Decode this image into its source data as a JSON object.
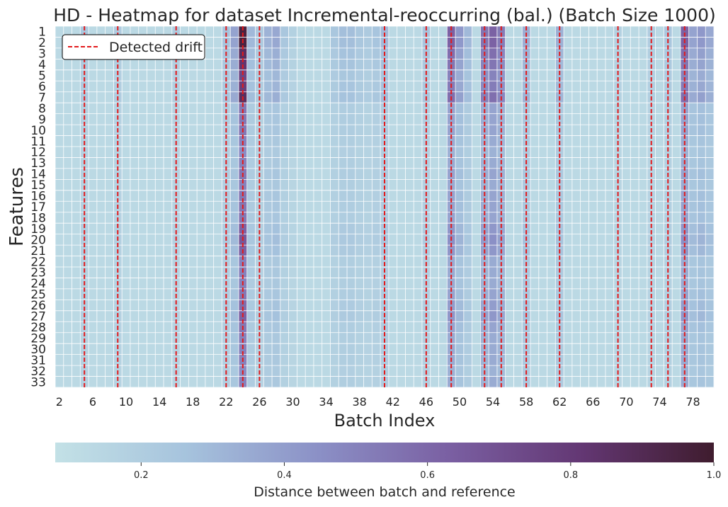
{
  "chart_data": {
    "type": "heatmap",
    "title": "HD - Heatmap for dataset Incremental-reoccurring (bal.) (Batch Size 1000)",
    "xlabel": "Batch Index",
    "ylabel": "Features",
    "x_start": 2,
    "x_end": 80,
    "x_tick_labels": [
      "2",
      "6",
      "10",
      "14",
      "18",
      "22",
      "26",
      "30",
      "34",
      "38",
      "42",
      "46",
      "50",
      "54",
      "58",
      "62",
      "66",
      "70",
      "74",
      "78"
    ],
    "y_labels": [
      "1",
      "2",
      "3",
      "4",
      "5",
      "6",
      "7",
      "8",
      "9",
      "10",
      "11",
      "12",
      "13",
      "14",
      "15",
      "16",
      "17",
      "18",
      "19",
      "20",
      "21",
      "22",
      "23",
      "24",
      "25",
      "26",
      "27",
      "28",
      "29",
      "30",
      "31",
      "32",
      "33"
    ],
    "legend": {
      "label": "Detected drift",
      "placement": "upper-left",
      "line_color": "#e31a1c"
    },
    "drift_batches": [
      5,
      9,
      16,
      22,
      24,
      26,
      41,
      46,
      49,
      53,
      55,
      58,
      62,
      69,
      73,
      75,
      77
    ],
    "colorbar": {
      "label": "Distance between batch and reference",
      "range": [
        0.08,
        1.0
      ],
      "ticks": [
        "0.2",
        "0.4",
        "0.6",
        "0.8",
        "1.0"
      ],
      "tick_values": [
        0.2,
        0.4,
        0.6,
        0.8,
        1.0
      ],
      "colormap": [
        "#c3e1e6",
        "#a6c3dd",
        "#8b90c6",
        "#7a5fa2",
        "#633773",
        "#3f1c2e"
      ]
    },
    "baseline_value": 0.13,
    "row_scale": [
      1.0,
      1.0,
      0.9,
      0.85,
      0.75,
      0.8,
      0.9,
      0.5,
      0.5,
      0.5,
      0.45,
      0.4,
      0.45,
      0.5,
      0.45,
      0.5,
      0.5,
      0.5,
      0.6,
      0.65,
      0.6,
      0.45,
      0.45,
      0.45,
      0.5,
      0.55,
      0.6,
      0.5,
      0.45,
      0.45,
      0.45,
      0.4,
      0.45
    ],
    "column_peaks": [
      {
        "batch": 5,
        "value": 0.23
      },
      {
        "batch": 9,
        "value": 0.21
      },
      {
        "batch": 16,
        "value": 0.2
      },
      {
        "batch": 22,
        "value": 0.26
      },
      {
        "batch": 23,
        "value": 0.38
      },
      {
        "batch": 24,
        "value": 0.95
      },
      {
        "batch": 25,
        "value": 0.3
      },
      {
        "batch": 26,
        "value": 0.22
      },
      {
        "batch": 27,
        "value": 0.32
      },
      {
        "batch": 28,
        "value": 0.36
      },
      {
        "batch": 29,
        "value": 0.24
      },
      {
        "batch": 30,
        "value": 0.18
      },
      {
        "batch": 35,
        "value": 0.24
      },
      {
        "batch": 36,
        "value": 0.28
      },
      {
        "batch": 37,
        "value": 0.28
      },
      {
        "batch": 38,
        "value": 0.24
      },
      {
        "batch": 39,
        "value": 0.22
      },
      {
        "batch": 40,
        "value": 0.25
      },
      {
        "batch": 41,
        "value": 0.3
      },
      {
        "batch": 46,
        "value": 0.25
      },
      {
        "batch": 49,
        "value": 0.62
      },
      {
        "batch": 50,
        "value": 0.42
      },
      {
        "batch": 51,
        "value": 0.3
      },
      {
        "batch": 53,
        "value": 0.55
      },
      {
        "batch": 54,
        "value": 0.62
      },
      {
        "batch": 55,
        "value": 0.52
      },
      {
        "batch": 58,
        "value": 0.34
      },
      {
        "batch": 62,
        "value": 0.33
      },
      {
        "batch": 69,
        "value": 0.18
      },
      {
        "batch": 73,
        "value": 0.2
      },
      {
        "batch": 75,
        "value": 0.24
      },
      {
        "batch": 77,
        "value": 0.62
      },
      {
        "batch": 78,
        "value": 0.38
      },
      {
        "batch": 79,
        "value": 0.42
      },
      {
        "batch": 80,
        "value": 0.36
      }
    ]
  }
}
